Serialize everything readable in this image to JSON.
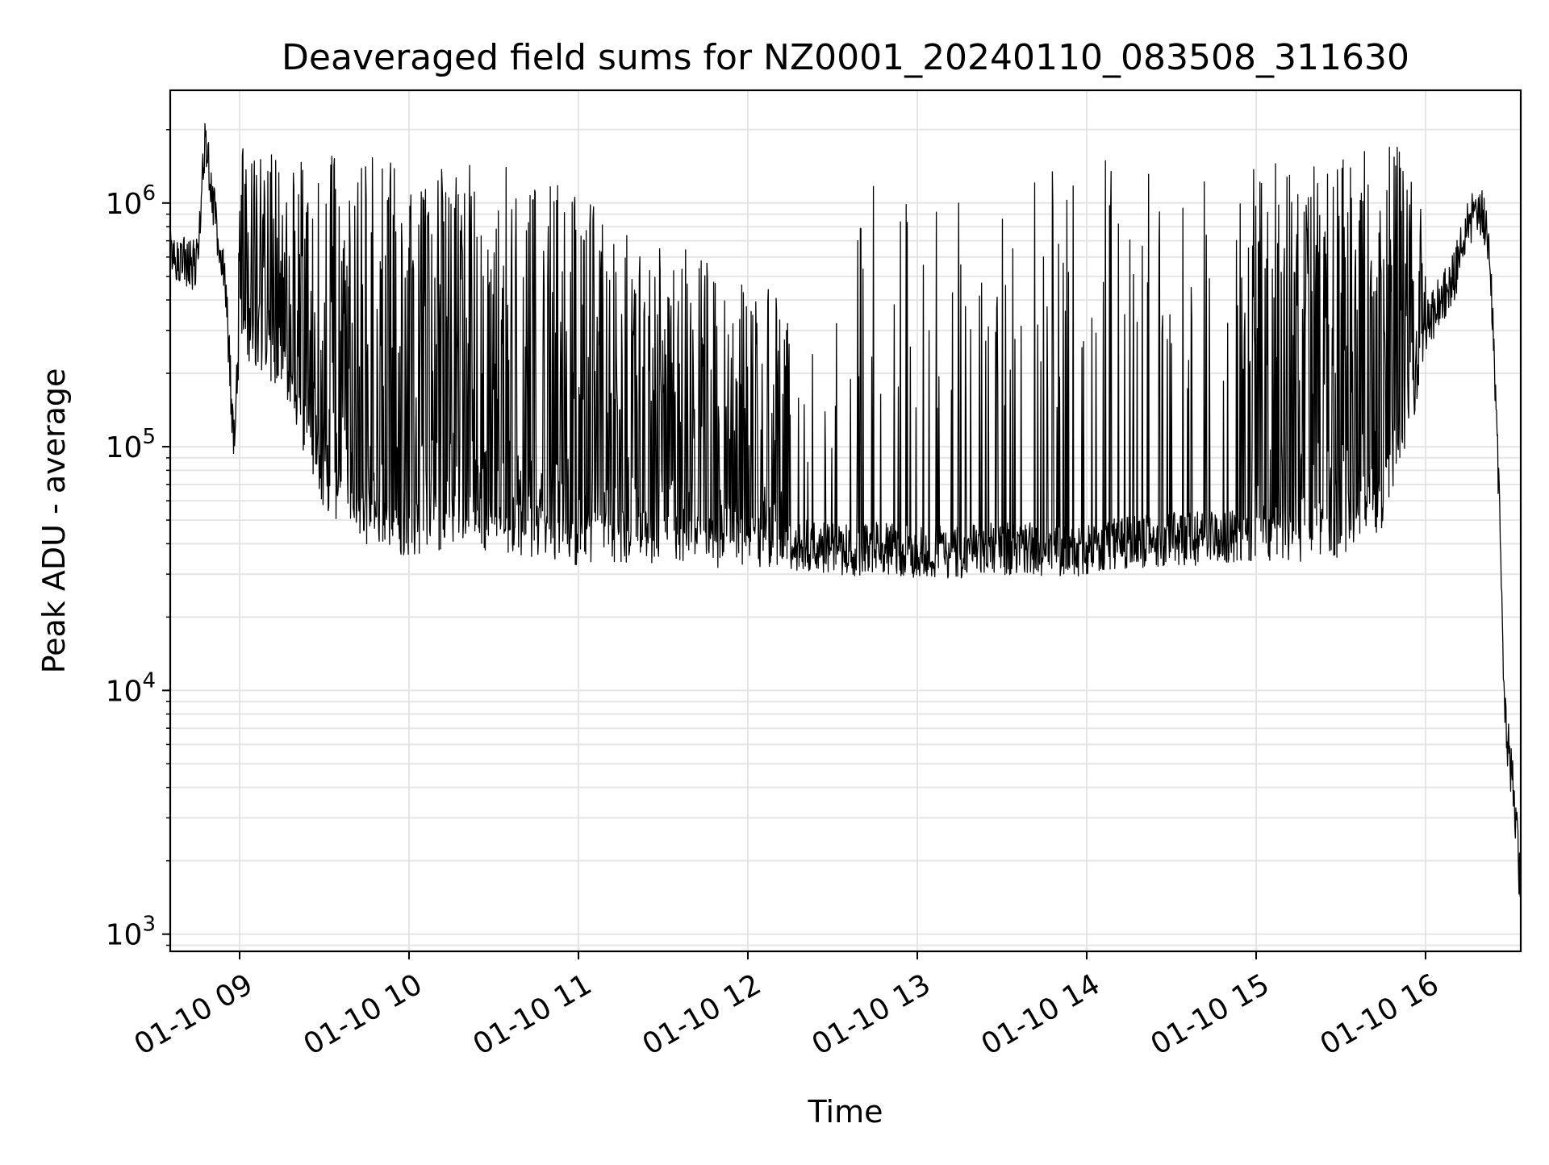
{
  "chart_data": {
    "type": "line",
    "title": "Deaveraged field sums for NZ0001_20240110_083508_311630",
    "xlabel": "Time",
    "ylabel": "Peak ADU - average",
    "yscale": "log",
    "grid": true,
    "line_color": "#000000",
    "grid_color": "#e5e5e5",
    "xlim": [
      "2024-01-10 08:35",
      "2024-01-10 16:34"
    ],
    "ylim": [
      850,
      2900000
    ],
    "x_tick_labels": [
      "01-10 09",
      "01-10 10",
      "01-10 11",
      "01-10 12",
      "01-10 13",
      "01-10 14",
      "01-10 15",
      "01-10 16"
    ],
    "y_tick_labels": [
      {
        "base": "10",
        "exp": "3",
        "value": 1000
      },
      {
        "base": "10",
        "exp": "4",
        "value": 10000
      },
      {
        "base": "10",
        "exp": "5",
        "value": 100000
      },
      {
        "base": "10",
        "exp": "6",
        "value": 1000000
      }
    ],
    "series": [
      {
        "x": [
          "08:35",
          "08:40",
          "08:45",
          "08:48",
          "08:50",
          "08:52",
          "08:55",
          "08:58",
          "09:00",
          "09:10",
          "09:20",
          "09:30",
          "09:45",
          "10:00",
          "10:15",
          "10:30",
          "10:45",
          "11:00",
          "11:15",
          "11:30",
          "11:45",
          "12:00",
          "12:15",
          "12:30",
          "12:45",
          "13:00",
          "13:15",
          "13:30",
          "13:45",
          "14:00",
          "14:15",
          "14:30",
          "14:45",
          "15:00",
          "15:15",
          "15:30",
          "15:45",
          "15:55",
          "16:00",
          "16:05",
          "16:10",
          "16:15",
          "16:18",
          "16:20",
          "16:22",
          "16:24",
          "16:26",
          "16:28",
          "16:30",
          "16:32",
          "16:34"
        ],
        "y": [
          600000,
          580000,
          560000,
          1900000,
          1200000,
          700000,
          450000,
          100000,
          300000,
          250000,
          150000,
          70000,
          50000,
          45000,
          50000,
          45000,
          45000,
          42000,
          42000,
          42000,
          40000,
          40000,
          40000,
          38000,
          38000,
          37000,
          37000,
          38000,
          38000,
          38000,
          40000,
          42000,
          42000,
          43000,
          43000,
          45000,
          60000,
          150000,
          300000,
          400000,
          500000,
          800000,
          950000,
          900000,
          700000,
          300000,
          60000,
          8000,
          5000,
          3000,
          1200
        ],
        "spike_max": [
          650000,
          620000,
          600000,
          1900000,
          1300000,
          1200000,
          900000,
          400000,
          1700000,
          1700000,
          1650000,
          1600000,
          1550000,
          1500000,
          1500000,
          1500000,
          1300000,
          1200000,
          1000000,
          800000,
          600000,
          500000,
          400000,
          300000,
          1500000,
          1400000,
          1300000,
          1500000,
          1500000,
          1500000,
          1500000,
          1550000,
          1550000,
          1550000,
          1600000,
          1600000,
          1700000,
          1700000,
          800000,
          550000,
          700000,
          900000,
          1000000,
          950000,
          800000,
          400000,
          90000,
          9000,
          7000,
          5000,
          2000
        ]
      }
    ]
  }
}
